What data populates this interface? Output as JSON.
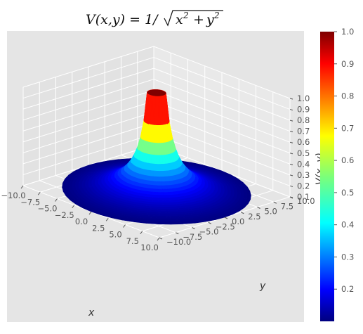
{
  "chart_data": {
    "type": "surface3d",
    "title": "V(x, y) = 1/√(x² + y²)",
    "title_parts": {
      "lhs": "V(x,y) = 1/",
      "radicand_x": "x",
      "radicand_y": "y",
      "plus": "+",
      "exp": "2"
    },
    "xlabel": "x",
    "ylabel": "y",
    "zlabel": "V(x, y)",
    "xlim": [
      -10,
      10
    ],
    "ylim": [
      -10,
      10
    ],
    "zlim": [
      0.1,
      1.0
    ],
    "x_ticks": [
      "−10.0",
      "−7.5",
      "−5.0",
      "−2.5",
      "0.0",
      "2.5",
      "5.0",
      "7.5",
      "10.0"
    ],
    "y_ticks": [
      "−10.0",
      "−7.5",
      "−5.0",
      "−2.5",
      "0.0",
      "2.5",
      "5.0",
      "7.5",
      "10.0"
    ],
    "z_ticks": [
      "0.1",
      "0.2",
      "0.3",
      "0.4",
      "0.5",
      "0.6",
      "0.7",
      "0.8",
      "0.9",
      "1.0"
    ],
    "surface": {
      "function": "1/sqrt(x^2+y^2)",
      "r_range": [
        1,
        10
      ],
      "clip_max": 1.0,
      "levels": [
        {
          "r": 1.0,
          "v": 1.0
        },
        {
          "r": 1.25,
          "v": 0.8
        },
        {
          "r": 1.667,
          "v": 0.6
        },
        {
          "r": 2.5,
          "v": 0.4
        },
        {
          "r": 5.0,
          "v": 0.2
        },
        {
          "r": 10.0,
          "v": 0.1
        }
      ]
    },
    "colormap": "jet",
    "colorbar": {
      "range": [
        0.1,
        1.0
      ],
      "ticks": [
        "0.2",
        "0.3",
        "0.4",
        "0.5",
        "0.6",
        "0.7",
        "0.8",
        "0.9",
        "1.0"
      ]
    },
    "grid": true,
    "style": "ggplot"
  },
  "colors": {
    "axes_bg": "#e5e5e5",
    "pane_left": "#e2e2e2",
    "pane_back": "#e9e9e9",
    "pane_floor": "#e5e5e5",
    "grid": "#ffffff"
  }
}
